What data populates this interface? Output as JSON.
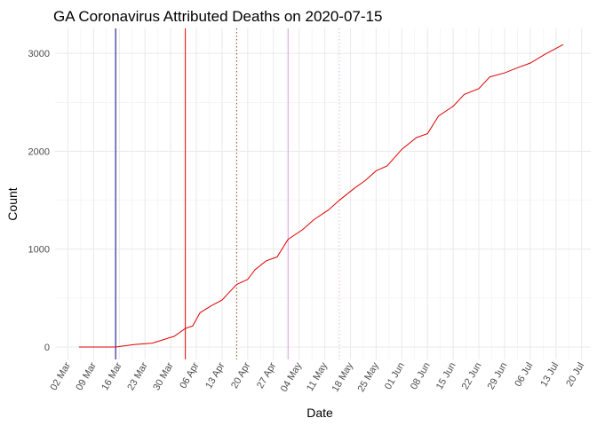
{
  "chart_data": {
    "type": "line",
    "title": "GA Coronavirus Attributed Deaths on 2020-07-15",
    "x_label": "Date",
    "y_label": "Count",
    "x": [
      65,
      75,
      80,
      85,
      88,
      91,
      94,
      96,
      98,
      101,
      104,
      108,
      111,
      113,
      116,
      119,
      122,
      126,
      129,
      133,
      136,
      140,
      143,
      146,
      149,
      153,
      157,
      160,
      163,
      167,
      170,
      174,
      177,
      181,
      185,
      188,
      192,
      197
    ],
    "series": [
      {
        "color": "#e00000",
        "values": [
          0,
          0,
          25,
          40,
          75,
          110,
          190,
          215,
          350,
          420,
          480,
          640,
          690,
          790,
          880,
          920,
          1100,
          1200,
          1300,
          1400,
          1500,
          1620,
          1700,
          1800,
          1850,
          2020,
          2140,
          2180,
          2360,
          2460,
          2580,
          2640,
          2760,
          2800,
          2860,
          2900,
          2990,
          3090
        ]
      }
    ],
    "vlines": [
      {
        "x": 75,
        "color": "#00008b",
        "dash": "solid"
      },
      {
        "x": 94,
        "color": "#e00000",
        "dash": "solid"
      },
      {
        "x": 108,
        "color": "#8b4513",
        "dash": "dotted"
      },
      {
        "x": 122,
        "color": "#dda0dd",
        "dash": "solid"
      },
      {
        "x": 136,
        "color": "#d8bfd8",
        "dash": "dotted"
      }
    ],
    "xlim": [
      58.5,
      204.5
    ],
    "xticks": [
      {
        "value": 62,
        "label": "02 Mar"
      },
      {
        "value": 69,
        "label": "09 Mar"
      },
      {
        "value": 76,
        "label": "16 Mar"
      },
      {
        "value": 83,
        "label": "23 Mar"
      },
      {
        "value": 90,
        "label": "30 Mar"
      },
      {
        "value": 97,
        "label": "06 Apr"
      },
      {
        "value": 104,
        "label": "13 Apr"
      },
      {
        "value": 111,
        "label": "20 Apr"
      },
      {
        "value": 118,
        "label": "27 Apr"
      },
      {
        "value": 125,
        "label": "04 May"
      },
      {
        "value": 132,
        "label": "11 May"
      },
      {
        "value": 139,
        "label": "18 May"
      },
      {
        "value": 146,
        "label": "25 May"
      },
      {
        "value": 153,
        "label": "01 Jun"
      },
      {
        "value": 160,
        "label": "08 Jun"
      },
      {
        "value": 167,
        "label": "15 Jun"
      },
      {
        "value": 174,
        "label": "22 Jun"
      },
      {
        "value": 181,
        "label": "29 Jun"
      },
      {
        "value": 188,
        "label": "06 Jul"
      },
      {
        "value": 195,
        "label": "13 Jul"
      },
      {
        "value": 202,
        "label": "20 Jul"
      }
    ],
    "ylim": [
      -127,
      3255
    ],
    "yticks": [
      0,
      1000,
      2000,
      3000
    ],
    "grid": true
  }
}
